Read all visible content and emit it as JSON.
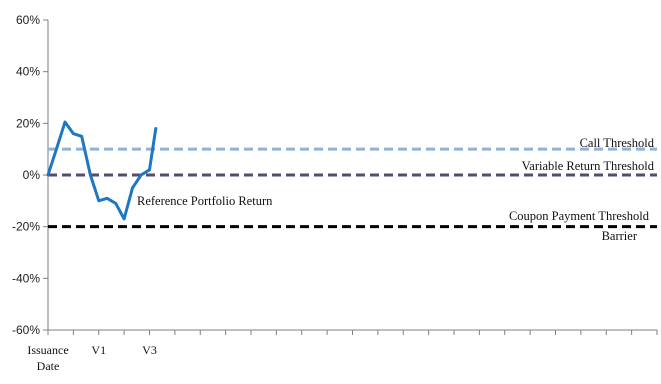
{
  "chart_data": {
    "type": "line",
    "title": "",
    "xlabel": "",
    "ylabel": "",
    "ylim": [
      -60,
      60
    ],
    "y_ticks": [
      60,
      40,
      20,
      0,
      -20,
      -40,
      -60
    ],
    "y_tick_format": "percent",
    "x_range": [
      0,
      24
    ],
    "x_tick_count": 24,
    "x_tick_labels": [
      {
        "x": 0,
        "lines": [
          "Issuance",
          "Date"
        ]
      },
      {
        "x": 2,
        "lines": [
          "V1"
        ]
      },
      {
        "x": 4,
        "lines": [
          "V3"
        ]
      }
    ],
    "grid": false,
    "series": [
      {
        "name": "Reference Portfolio Return",
        "color": "#1f77c4",
        "style": "solid",
        "x": [
          0,
          0.33,
          0.67,
          1.0,
          1.33,
          1.67,
          2.0,
          2.33,
          2.67,
          3.0,
          3.33,
          3.67,
          4.0,
          4.25
        ],
        "y": [
          0,
          10,
          20.5,
          16,
          15,
          0,
          -10,
          -9,
          -11,
          -17,
          -5,
          0,
          2,
          18
        ]
      }
    ],
    "thresholds": [
      {
        "name": "Call Threshold",
        "value": 10,
        "color": "#8fb2d8",
        "style": "dashed"
      },
      {
        "name": "Variable Return Threshold",
        "value": 0,
        "color": "#5a4a72",
        "style": "dashed"
      },
      {
        "name": "Coupon Payment Threshold",
        "value": -20,
        "color": "#000000",
        "style": "dashed"
      },
      {
        "name": "Barrier",
        "value": -20,
        "color": "#000000",
        "style": "dashed"
      }
    ]
  }
}
